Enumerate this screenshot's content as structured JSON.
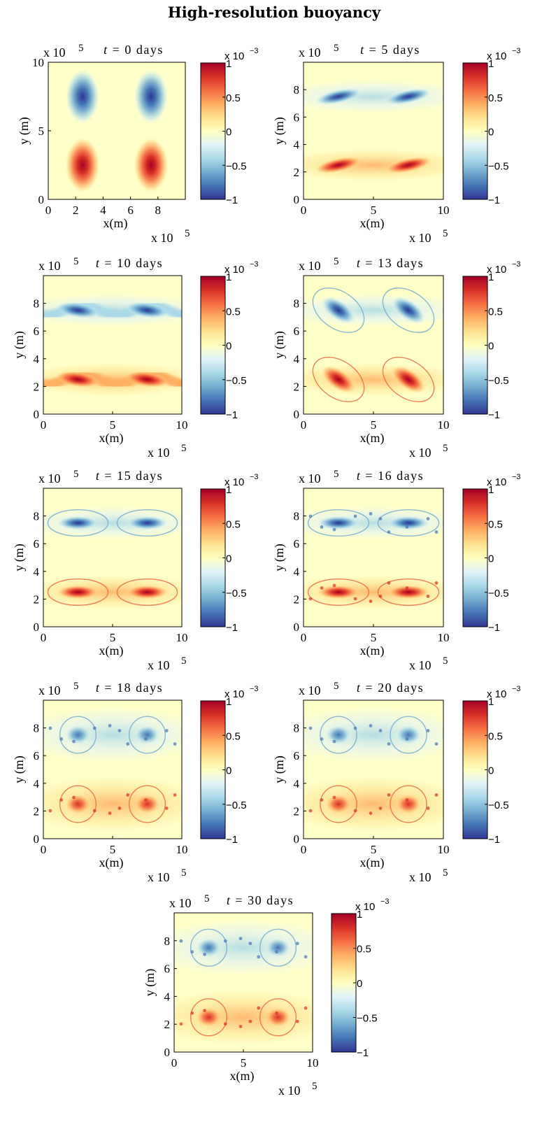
{
  "figure_title": "High-resolution buoyancy",
  "colorbar": {
    "ticks": [
      "1",
      "0.5",
      "0",
      "−0.5",
      "−1"
    ],
    "exponent_label": "x 10",
    "exponent": "−3",
    "range": [
      -1,
      1
    ],
    "colormap": [
      "#313695",
      "#4575b4",
      "#74add1",
      "#abd9e9",
      "#e0f3f8",
      "#ffffbf",
      "#fee090",
      "#fdae61",
      "#f46d43",
      "#d73027",
      "#a50026"
    ]
  },
  "axes": {
    "xlabel": "x(m)",
    "ylabel": "y (m)",
    "scale_label": "x 10",
    "scale_exp": "5"
  },
  "chart_data": [
    {
      "type": "heatmap",
      "title": "t = 0 days",
      "t_days": 0,
      "title_t": "t",
      "title_rest": " = 0 days",
      "xticks": [
        "0",
        "2",
        "4",
        "6",
        "8"
      ],
      "yticks": [
        "0",
        "5",
        "10"
      ],
      "xlim": [
        0,
        10
      ],
      "ylim": [
        0,
        10
      ],
      "stage": 0
    },
    {
      "type": "heatmap",
      "title": "t = 5 days",
      "t_days": 5,
      "title_t": "t",
      "title_rest": " = 5 days",
      "xticks": [
        "0",
        "5",
        "10"
      ],
      "yticks": [
        "0",
        "2",
        "4",
        "6",
        "8"
      ],
      "xlim": [
        0,
        10
      ],
      "ylim": [
        0,
        10
      ],
      "stage": 1
    },
    {
      "type": "heatmap",
      "title": "t = 10 days",
      "t_days": 10,
      "title_t": "t",
      "title_rest": " = 10 days",
      "xticks": [
        "0",
        "5",
        "10"
      ],
      "yticks": [
        "0",
        "2",
        "4",
        "6",
        "8"
      ],
      "xlim": [
        0,
        10
      ],
      "ylim": [
        0,
        10
      ],
      "stage": 2
    },
    {
      "type": "heatmap",
      "title": "t = 13 days",
      "t_days": 13,
      "title_t": "t",
      "title_rest": " = 13 days",
      "xticks": [
        "0",
        "5",
        "10"
      ],
      "yticks": [
        "0",
        "2",
        "4",
        "6",
        "8"
      ],
      "xlim": [
        0,
        10
      ],
      "ylim": [
        0,
        10
      ],
      "stage": 3
    },
    {
      "type": "heatmap",
      "title": "t = 15 days",
      "t_days": 15,
      "title_t": "t",
      "title_rest": " = 15 days",
      "xticks": [
        "0",
        "5",
        "10"
      ],
      "yticks": [
        "0",
        "2",
        "4",
        "6",
        "8"
      ],
      "xlim": [
        0,
        10
      ],
      "ylim": [
        0,
        10
      ],
      "stage": 4
    },
    {
      "type": "heatmap",
      "title": "t = 16 days",
      "t_days": 16,
      "title_t": "t",
      "title_rest": " = 16 days",
      "xticks": [
        "0",
        "5",
        "10"
      ],
      "yticks": [
        "0",
        "2",
        "4",
        "6",
        "8"
      ],
      "xlim": [
        0,
        10
      ],
      "ylim": [
        0,
        10
      ],
      "stage": 5
    },
    {
      "type": "heatmap",
      "title": "t = 18 days",
      "t_days": 18,
      "title_t": "t",
      "title_rest": " = 18 days",
      "xticks": [
        "0",
        "5",
        "10"
      ],
      "yticks": [
        "0",
        "2",
        "4",
        "6",
        "8"
      ],
      "xlim": [
        0,
        10
      ],
      "ylim": [
        0,
        10
      ],
      "stage": 6
    },
    {
      "type": "heatmap",
      "title": "t = 20 days",
      "t_days": 20,
      "title_t": "t",
      "title_rest": " = 20 days",
      "xticks": [
        "0",
        "5",
        "10"
      ],
      "yticks": [
        "0",
        "2",
        "4",
        "6",
        "8"
      ],
      "xlim": [
        0,
        10
      ],
      "ylim": [
        0,
        10
      ],
      "stage": 7
    },
    {
      "type": "heatmap",
      "title": "t = 30 days",
      "t_days": 30,
      "title_t": "t",
      "title_rest": " = 30 days",
      "xticks": [
        "0",
        "5",
        "10"
      ],
      "yticks": [
        "0",
        "2",
        "4",
        "6",
        "8"
      ],
      "xlim": [
        0,
        10
      ],
      "ylim": [
        0,
        10
      ],
      "stage": 8
    }
  ]
}
